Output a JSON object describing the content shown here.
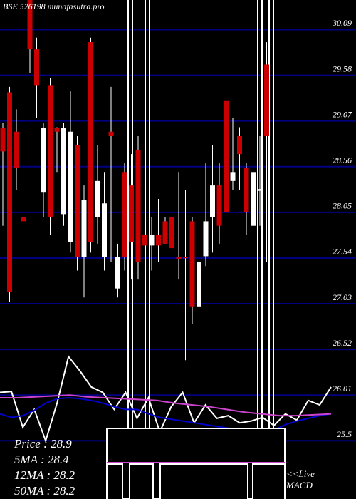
{
  "chart_data": {
    "type": "candlestick",
    "title": "BSE 526198 munafasutra.pro",
    "ylim": [
      24.85,
      30.42
    ],
    "yticks": [
      30.09,
      29.58,
      29.07,
      28.56,
      28.05,
      27.54,
      27.03,
      26.52,
      26.01,
      25.5
    ],
    "grid": true,
    "up_color": "#ffffff",
    "down_color": "#cc0000",
    "grid_color": "#000080",
    "open": [
      28.99,
      29.39,
      28.95,
      28.0,
      30.42,
      29.87,
      28.27,
      29.47,
      28.99,
      28.03,
      27.72,
      28.8,
      27.55,
      29.95,
      28.0,
      27.55,
      28.95,
      27.2,
      28.5,
      28.35,
      28.75,
      27.8,
      27.68,
      27.8,
      27.95,
      28.0,
      27.55,
      27.55,
      27.95,
      27.0,
      27.56,
      28.0,
      28.35,
      29.3,
      28.4,
      28.9,
      28.55,
      27.9,
      28.29,
      29.7
    ],
    "high": [
      29.05,
      29.45,
      29.2,
      28.05,
      30.42,
      30.0,
      29.05,
      29.55,
      29.0,
      29.05,
      29.4,
      28.9,
      28.35,
      30.0,
      28.8,
      28.5,
      29.45,
      27.7,
      28.6,
      28.7,
      28.9,
      28.6,
      28.0,
      28.2,
      28.0,
      29.4,
      28.5,
      28.3,
      28.0,
      27.6,
      28.6,
      28.8,
      28.6,
      29.4,
      29.1,
      29.0,
      28.6,
      28.6,
      28.9,
      29.95
    ],
    "low": [
      27.9,
      27.05,
      28.3,
      27.5,
      29.6,
      29.1,
      28.0,
      27.8,
      28.5,
      27.9,
      27.6,
      27.4,
      27.1,
      27.6,
      27.7,
      27.4,
      27.5,
      27.1,
      27.4,
      27.3,
      27.3,
      27.3,
      27.4,
      27.5,
      27.7,
      27.3,
      27.3,
      26.4,
      26.8,
      26.4,
      27.45,
      27.6,
      27.7,
      27.85,
      28.3,
      28.3,
      27.8,
      27.7,
      27.9,
      27.5
    ],
    "close": [
      28.73,
      27.16,
      28.55,
      27.95,
      29.87,
      29.47,
      28.99,
      28.0,
      28.95,
      28.99,
      28.95,
      27.55,
      28.19,
      27.72,
      28.4,
      28.15,
      28.9,
      27.55,
      27.55,
      27.72,
      27.5,
      27.68,
      27.8,
      27.68,
      27.7,
      27.65,
      27.53,
      27.54,
      27.0,
      27.5,
      27.95,
      28.35,
      27.9,
      28.05,
      28.5,
      28.7,
      28.05,
      28.5,
      28.31,
      28.9
    ],
    "series": [
      {
        "name": "Price",
        "color": "#ffffff",
        "values": [
          26.04,
          26.05,
          25.65,
          25.85,
          25.5,
          25.92,
          26.44,
          26.28,
          26.1,
          26.04,
          25.85,
          26.04,
          25.75,
          25.98,
          25.6,
          25.88,
          26.04,
          25.7,
          25.9,
          25.75,
          25.78,
          25.7,
          25.72,
          25.76,
          25.67,
          25.8,
          25.73,
          25.95,
          25.9,
          26.1
        ]
      },
      {
        "name": "12MA",
        "color": "#0000cc",
        "values": [
          25.8,
          25.76,
          25.78,
          25.84,
          25.92,
          25.97,
          25.98,
          25.97,
          25.95,
          25.92,
          25.88,
          25.85,
          25.85,
          25.8,
          25.76,
          25.74,
          25.72,
          25.7,
          25.68,
          25.66,
          25.64,
          25.62,
          25.6,
          25.58,
          25.62,
          25.68,
          25.72,
          25.75,
          25.78,
          25.8
        ]
      },
      {
        "name": "50MA",
        "color": "#cc44cc",
        "values": [
          25.98,
          25.98,
          25.99,
          26.0,
          26.01,
          25.99,
          25.98,
          25.97,
          25.96,
          25.95,
          25.92,
          25.9,
          25.88,
          25.85,
          25.82,
          25.8,
          25.78,
          25.78,
          25.79,
          25.8
        ]
      }
    ],
    "annotations": [
      "Price   : 28.9",
      "5MA   : 28.4",
      "12MA : 28.2",
      "50MA : 28.2"
    ],
    "live_label": "<<Live",
    "macd_label": "MACD"
  }
}
